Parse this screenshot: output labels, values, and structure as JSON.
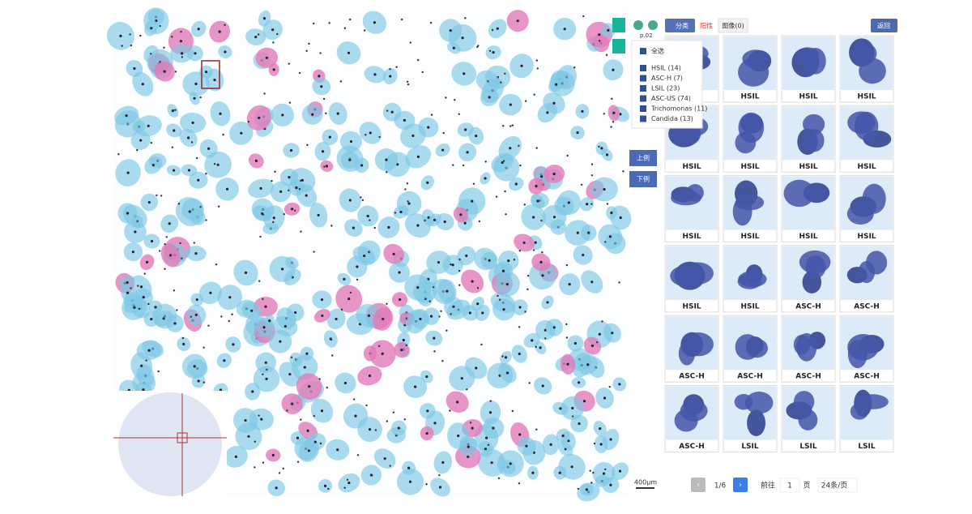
{
  "toolbar": {
    "page_code": "p.02",
    "classify": "分类",
    "positive": "阳性",
    "images": "图像(0)",
    "back": "返回"
  },
  "filter": {
    "select_all": "全选",
    "items": [
      "HSIL (14)",
      "ASC-H (7)",
      "LSIL (23)",
      "ASC-US (74)",
      "Trichomonas (11)",
      "Candida (13)"
    ]
  },
  "nav": {
    "prev_case": "上例",
    "next_case": "下例"
  },
  "scale_bar": "400μm",
  "gallery": {
    "labels": [
      null,
      "HSIL",
      "HSIL",
      "HSIL",
      "HSIL",
      "HSIL",
      "HSIL",
      "HSIL",
      "HSIL",
      "HSIL",
      "HSIL",
      "HSIL",
      "HSIL",
      "HSIL",
      "ASC-H",
      "ASC-H",
      "ASC-H",
      "ASC-H",
      "ASC-H",
      "ASC-H",
      "ASC-H",
      "LSIL",
      "LSIL",
      "LSIL"
    ]
  },
  "pagination": {
    "page": "1/6",
    "goto": "前往",
    "page_input": "1",
    "page_unit": "页",
    "page_size": "24条/页"
  }
}
